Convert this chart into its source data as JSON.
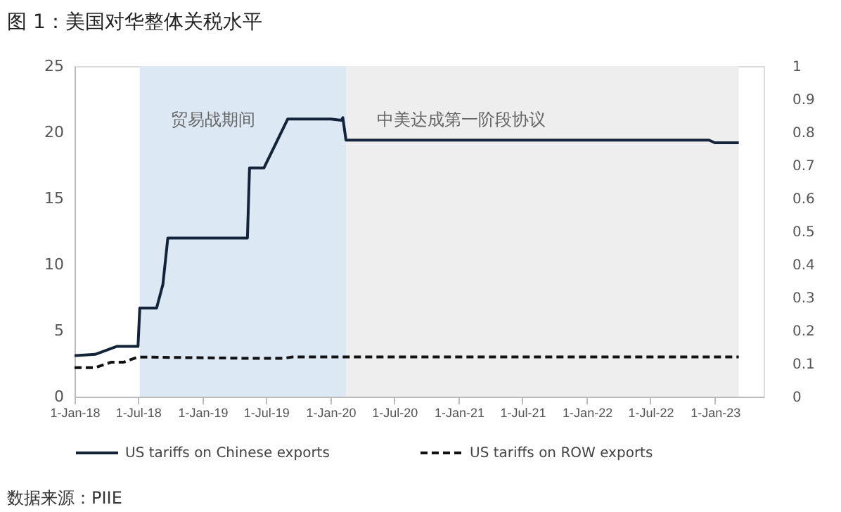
{
  "chart_data": {
    "type": "line",
    "title": "图 1：美国对华整体关税水平",
    "ylim": [
      0,
      25
    ],
    "yticks": [
      0,
      5,
      10,
      15,
      20,
      25
    ],
    "y2lim": [
      0,
      1
    ],
    "y2ticks": [
      0,
      0.1,
      0.2,
      0.3,
      0.4,
      0.5,
      0.6,
      0.7,
      0.8,
      0.9,
      1
    ],
    "xlim": [
      "2018-01-01",
      "2023-05-20"
    ],
    "xticks": [
      {
        "value": "2018-01-01",
        "label": "1-Jan-18"
      },
      {
        "value": "2018-07-01",
        "label": "1-Jul-18"
      },
      {
        "value": "2019-01-01",
        "label": "1-Jan-19"
      },
      {
        "value": "2019-07-01",
        "label": "1-Jul-19"
      },
      {
        "value": "2020-01-01",
        "label": "1-Jan-20"
      },
      {
        "value": "2020-07-01",
        "label": "1-Jul-20"
      },
      {
        "value": "2021-01-01",
        "label": "1-Jan-21"
      },
      {
        "value": "2021-07-01",
        "label": "1-Jul-21"
      },
      {
        "value": "2022-01-01",
        "label": "1-Jan-22"
      },
      {
        "value": "2022-07-01",
        "label": "1-Jul-22"
      },
      {
        "value": "2023-01-01",
        "label": "1-Jan-23"
      }
    ],
    "grid": false,
    "legend": "bottom",
    "marker": "none",
    "bands": [
      {
        "axis": "x",
        "from": "2018-07-06",
        "to": "2020-02-14",
        "label": "贸易战期间",
        "color": "#dce8f4"
      },
      {
        "axis": "x",
        "from": "2020-02-14",
        "to": "2023-03-10",
        "label": "中美达成第一阶段协议",
        "color": "#eeeeee"
      }
    ],
    "series": [
      {
        "name": "US tariffs on Chinese exports",
        "color": "#13243a",
        "line_style": "solid",
        "x": [
          "2018-01-01",
          "2018-03-01",
          "2018-05-01",
          "2018-07-01",
          "2018-07-06",
          "2018-08-23",
          "2018-09-10",
          "2018-09-24",
          "2019-05-09",
          "2019-05-15",
          "2019-06-25",
          "2019-09-01",
          "2020-01-01",
          "2020-02-01",
          "2020-02-05",
          "2020-02-14",
          "2022-12-15",
          "2023-01-01",
          "2023-03-10"
        ],
        "values": [
          3.1,
          3.2,
          3.8,
          3.8,
          6.7,
          6.7,
          8.5,
          12.0,
          12.0,
          17.3,
          17.3,
          21.0,
          21.0,
          20.9,
          21.1,
          19.4,
          19.4,
          19.2,
          19.2
        ]
      },
      {
        "name": "US tariffs on ROW exports",
        "color": "#111111",
        "line_style": "dashed",
        "x": [
          "2018-01-01",
          "2018-03-01",
          "2018-04-15",
          "2018-05-20",
          "2018-07-01",
          "2019-05-09",
          "2019-08-20",
          "2019-09-15",
          "2023-03-10"
        ],
        "values": [
          2.2,
          2.2,
          2.6,
          2.6,
          3.0,
          2.9,
          2.9,
          3.0,
          3.0
        ]
      }
    ],
    "annotations": [
      "数据来源：PIIE"
    ]
  }
}
